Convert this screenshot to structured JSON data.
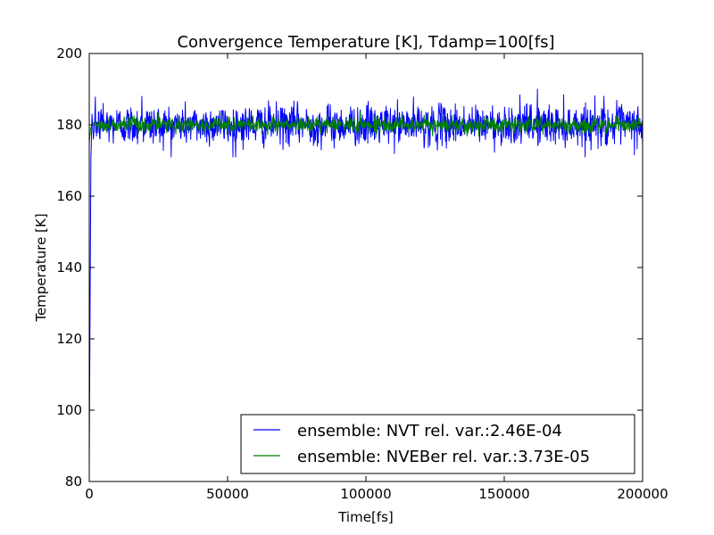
{
  "chart_data": {
    "type": "line",
    "title": "Convergence Temperature [K], Tdamp=100[fs]",
    "xlabel": "Time[fs]",
    "ylabel": "Temperature [K]",
    "xlim": [
      0,
      200000
    ],
    "ylim": [
      80,
      200
    ],
    "xticks": [
      "0",
      "50000",
      "100000",
      "150000",
      "200000"
    ],
    "yticks": [
      "80",
      "100",
      "120",
      "140",
      "160",
      "180",
      "200"
    ],
    "grid": false,
    "legend_position": "lower-right",
    "series": [
      {
        "name": "ensemble: NVT rel. var.:2.46E-04",
        "color": "#0000ff",
        "initial_value": 84,
        "equilibrium_mean": 180,
        "fluctuation_range": [
          171,
          190
        ],
        "x": [
          0,
          300,
          600,
          1000,
          1500,
          2000,
          5000,
          19000,
          30000,
          50000,
          52000,
          75000,
          100000,
          105000,
          125000,
          150000,
          162000,
          175000,
          186000,
          196000,
          200000
        ],
        "y": [
          84,
          130,
          170,
          183,
          176,
          182,
          186,
          188,
          176,
          181,
          171,
          180,
          176,
          182,
          179,
          181,
          190,
          178,
          188,
          176,
          174
        ]
      },
      {
        "name": "ensemble: NVEBer rel. var.:3.73E-05",
        "color": "#008000",
        "initial_value": 175,
        "equilibrium_mean": 180,
        "fluctuation_range": [
          176,
          184
        ],
        "x": [
          0,
          500,
          1000,
          2000,
          10000,
          50000,
          100000,
          150000,
          200000
        ],
        "y": [
          175,
          179,
          180,
          181,
          180,
          180,
          180,
          180,
          180
        ]
      }
    ]
  }
}
